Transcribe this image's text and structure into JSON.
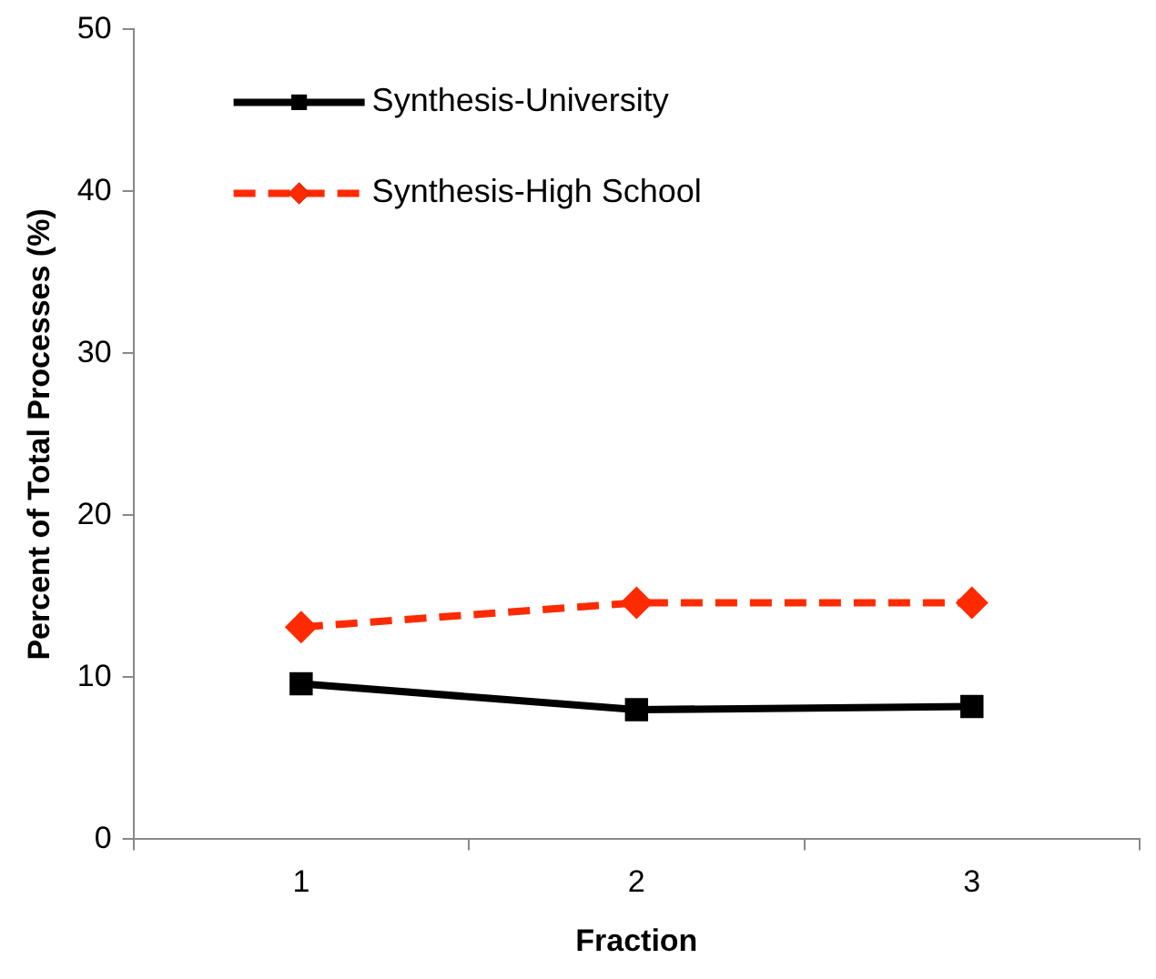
{
  "chart_data": {
    "type": "line",
    "xlabel": "Fraction",
    "ylabel": "Percent of Total Processes (%)",
    "categories": [
      "1",
      "2",
      "3"
    ],
    "series": [
      {
        "name": "Synthesis-University",
        "color": "#000000",
        "values": [
          9.6,
          8.0,
          8.2
        ],
        "marker": "square",
        "line_style": "solid"
      },
      {
        "name": "Synthesis-High School",
        "color": "#ff2a00",
        "values": [
          13.1,
          14.6,
          14.6
        ],
        "marker": "diamond",
        "line_style": "dashed"
      }
    ],
    "ylim": [
      0,
      50
    ],
    "yticks": [
      0,
      10,
      20,
      30,
      40,
      50
    ],
    "grid": false,
    "legend": "top left"
  }
}
